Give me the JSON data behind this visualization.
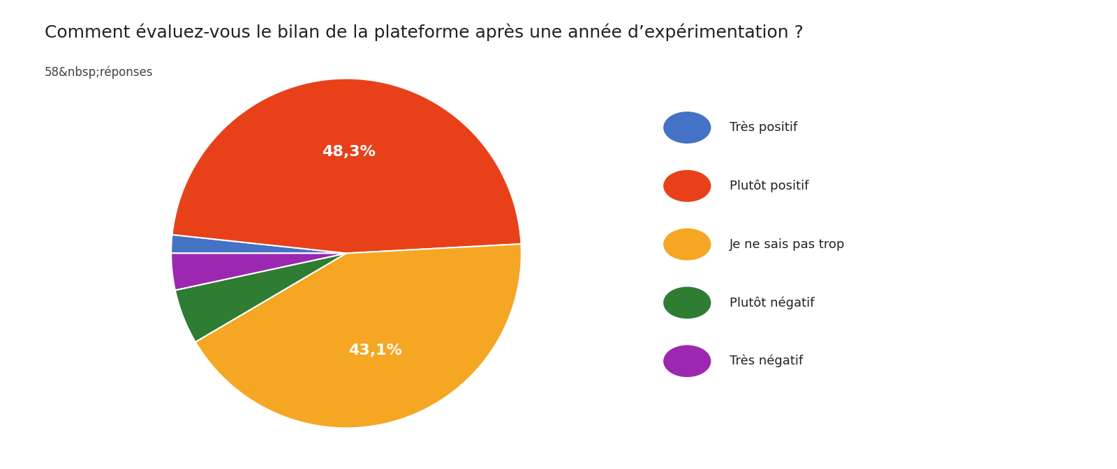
{
  "title": "Comment évaluez-vous le bilan de la plateforme après une année d’expérimentation ?",
  "subtitle": "58&nbsp;réponses",
  "labels": [
    "Très positif",
    "Plutôt positif",
    "Je ne sais pas trop",
    "Plutôt négatif",
    "Très négatif"
  ],
  "values": [
    1.724,
    48.276,
    43.103,
    5.172,
    3.448
  ],
  "display_pcts": [
    "",
    "48,3%",
    "43,1%",
    "",
    ""
  ],
  "colors": [
    "#4472C4",
    "#E8411A",
    "#F5A623",
    "#2E7D32",
    "#9C27B0"
  ],
  "background_color": "#FFFFFF",
  "title_fontsize": 18,
  "subtitle_fontsize": 12,
  "legend_fontsize": 13,
  "pct_fontsize": 16,
  "startangle": 180,
  "counterclock": false
}
